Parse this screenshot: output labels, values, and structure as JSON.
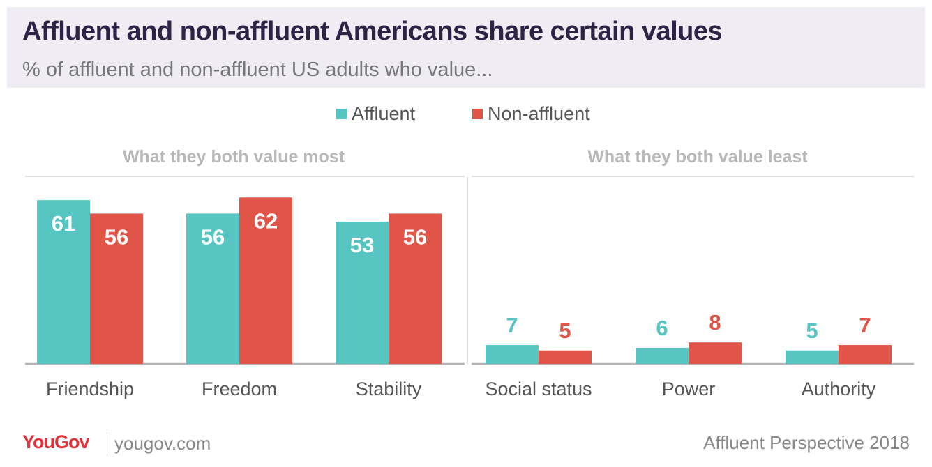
{
  "header": {
    "title": "Affluent and non-affluent Americans share certain values",
    "subtitle": "% of affluent and non-affluent US adults who value..."
  },
  "colors": {
    "affluent": "#57c5c2",
    "non_affluent": "#e05548",
    "section_label": "#b8b8b8",
    "axis_label": "#555555"
  },
  "footer": {
    "brand": "YouGov",
    "url": "yougov.com",
    "source": "Affluent Perspective 2018"
  },
  "chart_data": {
    "type": "bar",
    "title": "Affluent and non-affluent Americans share certain values",
    "subtitle": "% of affluent and non-affluent US adults who value...",
    "xlabel": "",
    "ylabel": "",
    "ylim": [
      0,
      62
    ],
    "legend": [
      "Affluent",
      "Non-affluent"
    ],
    "groups": [
      {
        "label": "What they both value most",
        "categories": [
          "Friendship",
          "Freedom",
          "Stability"
        ]
      },
      {
        "label": "What they both value least",
        "categories": [
          "Social status",
          "Power",
          "Authority"
        ]
      }
    ],
    "categories": [
      "Friendship",
      "Freedom",
      "Stability",
      "Social status",
      "Power",
      "Authority"
    ],
    "series": [
      {
        "name": "Affluent",
        "values": [
          61,
          56,
          53,
          7,
          6,
          5
        ]
      },
      {
        "name": "Non-affluent",
        "values": [
          56,
          62,
          56,
          5,
          8,
          7
        ]
      }
    ]
  }
}
